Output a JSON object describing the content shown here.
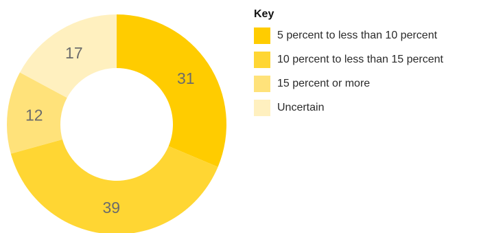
{
  "chart_data": {
    "type": "pie",
    "donut": true,
    "legend_title": "Key",
    "legend_position": "right",
    "slices": [
      {
        "label": "5 percent to less than 10 percent",
        "value": 31,
        "color": "#FFCC00"
      },
      {
        "label": "10 percent to less than 15 percent",
        "value": 39,
        "color": "#FFD633"
      },
      {
        "label": "15 percent or more",
        "value": 12,
        "color": "#FFE27A"
      },
      {
        "label": "Uncertain",
        "value": 17,
        "color": "#FFF0BF"
      }
    ]
  }
}
